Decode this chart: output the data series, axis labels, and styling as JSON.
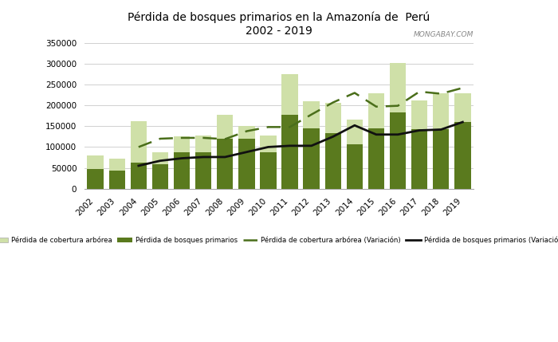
{
  "years": [
    2002,
    2003,
    2004,
    2005,
    2006,
    2007,
    2008,
    2009,
    2010,
    2011,
    2012,
    2013,
    2014,
    2015,
    2016,
    2017,
    2018,
    2019
  ],
  "cobertura_arborea": [
    80000,
    72000,
    163000,
    87000,
    125000,
    128000,
    178000,
    150000,
    127000,
    275000,
    210000,
    207000,
    165000,
    230000,
    302000,
    212000,
    230000,
    230000
  ],
  "bosques_primarios": [
    47000,
    44000,
    62000,
    59000,
    87000,
    87000,
    120000,
    120000,
    88000,
    178000,
    145000,
    133000,
    106000,
    145000,
    183000,
    142000,
    142000,
    161000
  ],
  "cobertura_variacion": [
    null,
    null,
    100000,
    120000,
    122000,
    122000,
    119000,
    138000,
    148000,
    148000,
    178000,
    207000,
    230000,
    197000,
    199000,
    233000,
    228000,
    242000
  ],
  "bosques_variacion": [
    null,
    null,
    55000,
    67000,
    73000,
    76000,
    76000,
    88000,
    100000,
    103000,
    103000,
    125000,
    152000,
    130000,
    130000,
    140000,
    142000,
    160000
  ],
  "title_line1": "Pérdida de bosques primarios en la Amazonía de  Perú",
  "title_line2": "2002 - 2019",
  "color_light": "#cfe0a8",
  "color_dark": "#5a7a1e",
  "color_dashed": "#4a6e1a",
  "color_solid": "#111111",
  "ylim": [
    0,
    350000
  ],
  "yticks": [
    0,
    50000,
    100000,
    150000,
    200000,
    250000,
    300000,
    350000
  ],
  "legend_labels": [
    "Pérdida de cobertura arbórea",
    "Pérdida de bosques primarios",
    "Pérdida de cobertura arbórea (Variación)",
    "Pérdida de bosques primarios (Variación)"
  ]
}
